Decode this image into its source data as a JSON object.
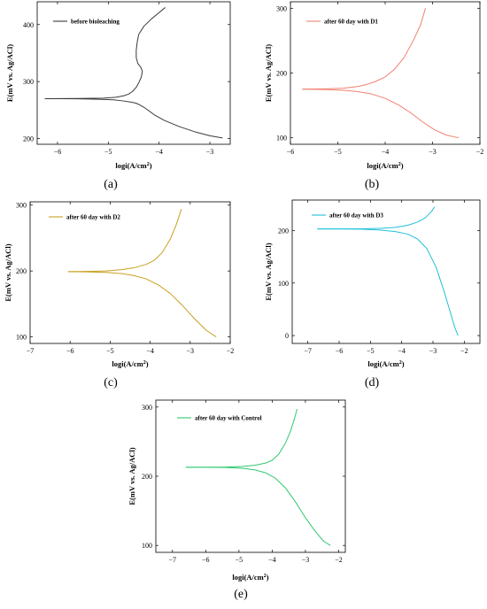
{
  "figure": {
    "background": "#ffffff"
  },
  "chart_data": [
    {
      "type": "line",
      "panel_label": "(a)",
      "xlabel": "logi(A/cm",
      "xlabel_sup": "2",
      "xlabel_end": ")",
      "ylabel": "E(mV vs. Ag/ACl)",
      "xlim": [
        -6.4,
        -2.6
      ],
      "ylim": [
        190,
        440
      ],
      "xticks": [
        -6,
        -5,
        -4,
        -3
      ],
      "yticks": [
        200,
        300,
        400
      ],
      "series": [
        {
          "name": "before bioleaching",
          "color": "#3a3a3a",
          "x": [
            -6.25,
            -6.0,
            -5.6,
            -5.2,
            -4.9,
            -4.7,
            -4.55,
            -4.45,
            -4.38,
            -4.3,
            -4.22,
            -4.1,
            -3.9,
            -3.6,
            -3.3,
            -3.0,
            -2.75
          ],
          "y": [
            270,
            270,
            269.8,
            269,
            268,
            266,
            264,
            262,
            259,
            255,
            250,
            242,
            232,
            221,
            212,
            205,
            201
          ]
        },
        {
          "name": "",
          "color": "#3a3a3a",
          "x": [
            -6.25,
            -5.6,
            -5.1,
            -4.85,
            -4.7,
            -4.6,
            -4.52,
            -4.45,
            -4.4,
            -4.35,
            -4.33,
            -4.36,
            -4.42,
            -4.45,
            -4.45,
            -4.43,
            -4.4,
            -4.3,
            -4.15,
            -4.0,
            -3.88
          ],
          "y": [
            270,
            270.3,
            271,
            272.5,
            275,
            278,
            283,
            290,
            298,
            308,
            318,
            325,
            332,
            342,
            355,
            370,
            383,
            397,
            410,
            421,
            430
          ]
        }
      ]
    },
    {
      "type": "line",
      "panel_label": "(b)",
      "xlabel": "logi(A/cm",
      "xlabel_sup": "2",
      "xlabel_end": ")",
      "ylabel": "E(mV vs. Ag/ACl)",
      "xlim": [
        -6.0,
        -2.0
      ],
      "ylim": [
        90,
        310
      ],
      "xticks": [
        -6,
        -5,
        -4,
        -3,
        -2
      ],
      "yticks": [
        100,
        200,
        300
      ],
      "series": [
        {
          "name": "after 60 day with D1",
          "color": "#f08070",
          "x": [
            -5.75,
            -5.3,
            -4.9,
            -4.6,
            -4.4,
            -4.2,
            -4.0,
            -3.8,
            -3.6,
            -3.4,
            -3.25,
            -3.15
          ],
          "y": [
            175,
            175.5,
            176.5,
            179,
            182,
            187,
            194,
            206,
            224,
            251,
            275,
            300
          ]
        },
        {
          "name": "",
          "color": "#f08070",
          "x": [
            -5.75,
            -5.3,
            -4.9,
            -4.6,
            -4.3,
            -4.0,
            -3.7,
            -3.45,
            -3.2,
            -2.95,
            -2.7,
            -2.45
          ],
          "y": [
            175,
            174.5,
            173.5,
            171.5,
            168,
            161,
            150,
            138,
            124,
            112,
            104,
            100
          ]
        }
      ]
    },
    {
      "type": "line",
      "panel_label": "(c)",
      "xlabel": "logi(A/cm",
      "xlabel_sup": "2",
      "xlabel_end": ")",
      "ylabel": "E(mV vs. Ag/ACl)",
      "xlim": [
        -7.0,
        -2.0
      ],
      "ylim": [
        90,
        305
      ],
      "xticks": [
        -7,
        -6,
        -5,
        -4,
        -3,
        -2
      ],
      "yticks": [
        100,
        200,
        300
      ],
      "series": [
        {
          "name": "after 60 day with D2",
          "color": "#c8a020",
          "x": [
            -6.05,
            -5.6,
            -5.1,
            -4.7,
            -4.4,
            -4.1,
            -3.9,
            -3.7,
            -3.5,
            -3.35,
            -3.22
          ],
          "y": [
            199,
            199.3,
            200,
            202,
            205,
            210,
            216,
            228,
            248,
            270,
            294
          ]
        },
        {
          "name": "",
          "color": "#c8a020",
          "x": [
            -6.05,
            -5.6,
            -5.1,
            -4.7,
            -4.4,
            -4.1,
            -3.8,
            -3.5,
            -3.2,
            -2.9,
            -2.6,
            -2.35
          ],
          "y": [
            199,
            198.7,
            197.8,
            196,
            193,
            188,
            179,
            166,
            148,
            128,
            110,
            100
          ]
        }
      ]
    },
    {
      "type": "line",
      "panel_label": "(d)",
      "xlabel": "logi(A/cm",
      "xlabel_sup": "2",
      "xlabel_end": ")",
      "ylabel": "E(mV vs. Ag/ACl)",
      "xlim": [
        -7.5,
        -1.5
      ],
      "ylim": [
        -15,
        258
      ],
      "xticks": [
        -7,
        -6,
        -5,
        -4,
        -3,
        -2
      ],
      "yticks": [
        0,
        100,
        200
      ],
      "series": [
        {
          "name": "after 60 day with D3",
          "color": "#20c0d8",
          "x": [
            -6.7,
            -6.0,
            -5.3,
            -4.7,
            -4.2,
            -3.8,
            -3.5,
            -3.25,
            -3.05,
            -2.95
          ],
          "y": [
            203,
            203,
            203.2,
            204,
            206,
            210,
            216,
            224,
            236,
            245
          ]
        },
        {
          "name": "",
          "color": "#20c0d8",
          "x": [
            -6.7,
            -6.0,
            -5.3,
            -4.7,
            -4.2,
            -3.8,
            -3.5,
            -3.2,
            -2.9,
            -2.65,
            -2.45,
            -2.3,
            -2.2
          ],
          "y": [
            203,
            203,
            202.5,
            201,
            198,
            193,
            184,
            166,
            130,
            85,
            45,
            15,
            0
          ]
        }
      ]
    },
    {
      "type": "line",
      "panel_label": "(e)",
      "xlabel": "logi(A/cm",
      "xlabel_sup": "2",
      "xlabel_end": ")",
      "ylabel": "E(mV vs. Ag/ACl)",
      "xlim": [
        -7.5,
        -1.8
      ],
      "ylim": [
        90,
        310
      ],
      "xticks": [
        -7,
        -6,
        -5,
        -4,
        -3,
        -2
      ],
      "yticks": [
        100,
        200,
        300
      ],
      "series": [
        {
          "name": "after 60 day with Control",
          "color": "#30c870",
          "x": [
            -6.6,
            -6.0,
            -5.4,
            -4.9,
            -4.5,
            -4.2,
            -4.0,
            -3.8,
            -3.6,
            -3.45,
            -3.35,
            -3.25
          ],
          "y": [
            213,
            213,
            213.2,
            214,
            216,
            219,
            223,
            232,
            248,
            265,
            280,
            297
          ]
        },
        {
          "name": "",
          "color": "#30c870",
          "x": [
            -6.6,
            -6.0,
            -5.4,
            -4.9,
            -4.5,
            -4.2,
            -3.9,
            -3.6,
            -3.3,
            -3.0,
            -2.7,
            -2.45,
            -2.25
          ],
          "y": [
            213,
            213,
            212.7,
            211.5,
            209,
            205,
            197,
            183,
            163,
            140,
            120,
            106,
            100
          ]
        }
      ]
    }
  ]
}
